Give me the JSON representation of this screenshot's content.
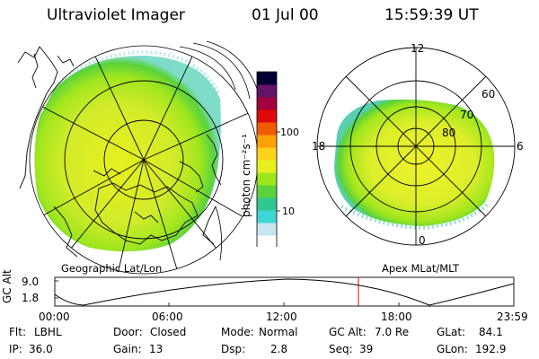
{
  "header": {
    "instrument": "Ultraviolet Imager",
    "date": "01 Jul 00",
    "time": "15:59:39 UT"
  },
  "geo_panel": {
    "caption": "Geographic Lat/Lon"
  },
  "colorbar": {
    "unit_label": "photon cm⁻²s⁻¹",
    "ticks": [
      "100",
      "10"
    ],
    "colors": [
      "#ffffff",
      "#c8e6f0",
      "#3fd6d6",
      "#30c890",
      "#5ad23c",
      "#a0e61e",
      "#e6f01e",
      "#ffd21e",
      "#ffa000",
      "#f05a00",
      "#dc0a0a",
      "#a0003c",
      "#641464",
      "#000032"
    ]
  },
  "apex_panel": {
    "caption": "Apex MLat/MLT",
    "mlt_labels": [
      "12",
      "18",
      "6",
      "0"
    ],
    "lat_labels": [
      "60",
      "70",
      "80"
    ]
  },
  "altitude_plot": {
    "ylabel": "GC Alt",
    "ytick_labels": [
      "9.0",
      "1.8"
    ],
    "xtick_labels": [
      "00:00",
      "06:00",
      "12:00",
      "18:00",
      "23:59"
    ],
    "marker_color": "#d40000"
  },
  "info": {
    "row1": [
      {
        "k": "Flt:",
        "v": "LBHL"
      },
      {
        "k": "Door:",
        "v": "Closed"
      },
      {
        "k": "Mode:",
        "v": "Normal"
      },
      {
        "k": "GC Alt:",
        "v": "7.0 Re"
      },
      {
        "k": "GLat:",
        "v": "84.1"
      }
    ],
    "row2": [
      {
        "k": "IP:",
        "v": "36.0"
      },
      {
        "k": "Gain:",
        "v": "13"
      },
      {
        "k": "Dsp:",
        "v": "2.8"
      },
      {
        "k": "Seq:",
        "v": "39"
      },
      {
        "k": "GLon:",
        "v": "192.9"
      }
    ]
  }
}
